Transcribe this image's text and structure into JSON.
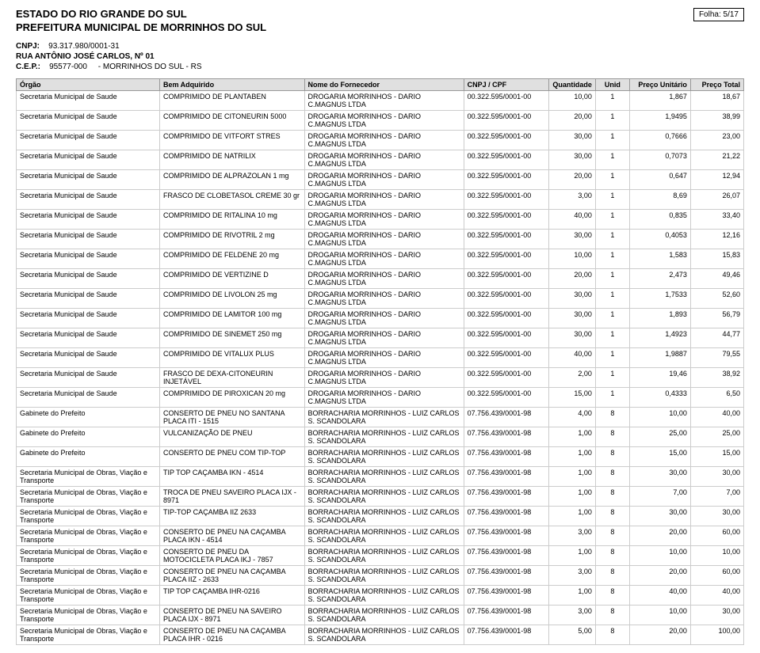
{
  "header": {
    "line1": "ESTADO DO RIO GRANDE DO SUL",
    "line2": "PREFEITURA MUNICIPAL DE MORRINHOS DO SUL",
    "folha_label": "Folha:",
    "folha_value": "5/17",
    "cnpj_label": "CNPJ:",
    "cnpj_value": "93.317.980/0001-31",
    "endereco": "RUA ANTÔNIO JOSÉ CARLOS, Nº 01",
    "cep_label": "C.E.P.:",
    "cep_value": "95577-000",
    "cidade": "- MORRINHOS DO SUL - RS"
  },
  "columns": {
    "orgao": "Órgão",
    "bem": "Bem Adquirido",
    "fornecedor": "Nome do Fornecedor",
    "cnpj": "CNPJ / CPF",
    "qtd": "Quantidade",
    "unid": "Unid",
    "pu": "Preço Unitário",
    "pt": "Preço Total"
  },
  "rows": [
    {
      "orgao": "Secretaria Municipal de Saude",
      "bem": "COMPRIMIDO DE PLANTABEN",
      "forn": "DROGARIA MORRINHOS - DARIO C.MAGNUS LTDA",
      "cnpj": "00.322.595/0001-00",
      "qtd": "10,00",
      "unid": "1",
      "pu": "1,867",
      "pt": "18,67"
    },
    {
      "orgao": "Secretaria Municipal de Saude",
      "bem": "COMPRIMIDO DE CITONEURIN 5000",
      "forn": "DROGARIA MORRINHOS - DARIO C.MAGNUS LTDA",
      "cnpj": "00.322.595/0001-00",
      "qtd": "20,00",
      "unid": "1",
      "pu": "1,9495",
      "pt": "38,99"
    },
    {
      "orgao": "Secretaria Municipal de Saude",
      "bem": "COMPRIMIDO DE VITFORT STRES",
      "forn": "DROGARIA MORRINHOS - DARIO C.MAGNUS LTDA",
      "cnpj": "00.322.595/0001-00",
      "qtd": "30,00",
      "unid": "1",
      "pu": "0,7666",
      "pt": "23,00"
    },
    {
      "orgao": "Secretaria Municipal de Saude",
      "bem": "COMPRIMIDO DE NATRILIX",
      "forn": "DROGARIA MORRINHOS - DARIO C.MAGNUS LTDA",
      "cnpj": "00.322.595/0001-00",
      "qtd": "30,00",
      "unid": "1",
      "pu": "0,7073",
      "pt": "21,22"
    },
    {
      "orgao": "Secretaria Municipal de Saude",
      "bem": "COMPRIMIDO DE ALPRAZOLAN 1 mg",
      "forn": "DROGARIA MORRINHOS - DARIO C.MAGNUS LTDA",
      "cnpj": "00.322.595/0001-00",
      "qtd": "20,00",
      "unid": "1",
      "pu": "0,647",
      "pt": "12,94"
    },
    {
      "orgao": "Secretaria Municipal de Saude",
      "bem": "FRASCO DE CLOBETASOL CREME 30 gr",
      "forn": "DROGARIA MORRINHOS - DARIO C.MAGNUS LTDA",
      "cnpj": "00.322.595/0001-00",
      "qtd": "3,00",
      "unid": "1",
      "pu": "8,69",
      "pt": "26,07"
    },
    {
      "orgao": "Secretaria Municipal de Saude",
      "bem": "COMPRIMIDO DE RITALINA 10 mg",
      "forn": "DROGARIA MORRINHOS - DARIO C.MAGNUS LTDA",
      "cnpj": "00.322.595/0001-00",
      "qtd": "40,00",
      "unid": "1",
      "pu": "0,835",
      "pt": "33,40"
    },
    {
      "orgao": "Secretaria Municipal de Saude",
      "bem": "COMPRIMIDO DE RIVOTRIL 2 mg",
      "forn": "DROGARIA MORRINHOS - DARIO C.MAGNUS LTDA",
      "cnpj": "00.322.595/0001-00",
      "qtd": "30,00",
      "unid": "1",
      "pu": "0,4053",
      "pt": "12,16"
    },
    {
      "orgao": "Secretaria Municipal de Saude",
      "bem": "COMPRIMIDO DE FELDENE 20 mg",
      "forn": "DROGARIA MORRINHOS - DARIO C.MAGNUS LTDA",
      "cnpj": "00.322.595/0001-00",
      "qtd": "10,00",
      "unid": "1",
      "pu": "1,583",
      "pt": "15,83"
    },
    {
      "orgao": "Secretaria Municipal de Saude",
      "bem": "COMPRIMIDO DE VERTIZINE D",
      "forn": "DROGARIA MORRINHOS - DARIO C.MAGNUS LTDA",
      "cnpj": "00.322.595/0001-00",
      "qtd": "20,00",
      "unid": "1",
      "pu": "2,473",
      "pt": "49,46"
    },
    {
      "orgao": "Secretaria Municipal de Saude",
      "bem": "COMPRIMIDO DE LIVOLON 25 mg",
      "forn": "DROGARIA MORRINHOS - DARIO C.MAGNUS LTDA",
      "cnpj": "00.322.595/0001-00",
      "qtd": "30,00",
      "unid": "1",
      "pu": "1,7533",
      "pt": "52,60"
    },
    {
      "orgao": "Secretaria Municipal de Saude",
      "bem": "COMPRIMIDO DE LAMITOR 100 mg",
      "forn": "DROGARIA MORRINHOS - DARIO C.MAGNUS LTDA",
      "cnpj": "00.322.595/0001-00",
      "qtd": "30,00",
      "unid": "1",
      "pu": "1,893",
      "pt": "56,79"
    },
    {
      "orgao": "Secretaria Municipal de Saude",
      "bem": "COMPRIMIDO DE SINEMET 250 mg",
      "forn": "DROGARIA MORRINHOS - DARIO C.MAGNUS LTDA",
      "cnpj": "00.322.595/0001-00",
      "qtd": "30,00",
      "unid": "1",
      "pu": "1,4923",
      "pt": "44,77"
    },
    {
      "orgao": "Secretaria Municipal de Saude",
      "bem": "COMPRIMIDO DE VITALUX PLUS",
      "forn": "DROGARIA MORRINHOS - DARIO C.MAGNUS LTDA",
      "cnpj": "00.322.595/0001-00",
      "qtd": "40,00",
      "unid": "1",
      "pu": "1,9887",
      "pt": "79,55"
    },
    {
      "orgao": "Secretaria Municipal de Saude",
      "bem": "FRASCO DE DEXA-CITONEURIN INJETÁVEL",
      "forn": "DROGARIA MORRINHOS - DARIO C.MAGNUS LTDA",
      "cnpj": "00.322.595/0001-00",
      "qtd": "2,00",
      "unid": "1",
      "pu": "19,46",
      "pt": "38,92"
    },
    {
      "orgao": "Secretaria Municipal de Saude",
      "bem": "COMPRIMIDO DE PIROXICAN 20 mg",
      "forn": "DROGARIA MORRINHOS - DARIO C.MAGNUS LTDA",
      "cnpj": "00.322.595/0001-00",
      "qtd": "15,00",
      "unid": "1",
      "pu": "0,4333",
      "pt": "6,50"
    },
    {
      "orgao": "Gabinete do Prefeito",
      "bem": "CONSERTO DE PNEU NO SANTANA PLACA ITI - 1515",
      "forn": "BORRACHARIA MORRINHOS - LUIZ CARLOS S. SCANDOLARA",
      "cnpj": "07.756.439/0001-98",
      "qtd": "4,00",
      "unid": "8",
      "pu": "10,00",
      "pt": "40,00"
    },
    {
      "orgao": "Gabinete do Prefeito",
      "bem": "VULCANIZAÇÃO DE PNEU",
      "forn": "BORRACHARIA MORRINHOS - LUIZ CARLOS S. SCANDOLARA",
      "cnpj": "07.756.439/0001-98",
      "qtd": "1,00",
      "unid": "8",
      "pu": "25,00",
      "pt": "25,00"
    },
    {
      "orgao": "Gabinete do Prefeito",
      "bem": "CONSERTO DE PNEU COM TIP-TOP",
      "forn": "BORRACHARIA MORRINHOS - LUIZ CARLOS S. SCANDOLARA",
      "cnpj": "07.756.439/0001-98",
      "qtd": "1,00",
      "unid": "8",
      "pu": "15,00",
      "pt": "15,00"
    },
    {
      "orgao": "Secretaria Municipal de Obras, Viação e Transporte",
      "bem": "TIP TOP CAÇAMBA IKN - 4514",
      "forn": "BORRACHARIA MORRINHOS - LUIZ CARLOS S. SCANDOLARA",
      "cnpj": "07.756.439/0001-98",
      "qtd": "1,00",
      "unid": "8",
      "pu": "30,00",
      "pt": "30,00"
    },
    {
      "orgao": "Secretaria Municipal de Obras, Viação e Transporte",
      "bem": "TROCA DE PNEU SAVEIRO PLACA IJX - 8971",
      "forn": "BORRACHARIA MORRINHOS - LUIZ CARLOS S. SCANDOLARA",
      "cnpj": "07.756.439/0001-98",
      "qtd": "1,00",
      "unid": "8",
      "pu": "7,00",
      "pt": "7,00"
    },
    {
      "orgao": "Secretaria Municipal de Obras, Viação e Transporte",
      "bem": "TIP-TOP CAÇAMBA IIZ 2633",
      "forn": "BORRACHARIA MORRINHOS - LUIZ CARLOS S. SCANDOLARA",
      "cnpj": "07.756.439/0001-98",
      "qtd": "1,00",
      "unid": "8",
      "pu": "30,00",
      "pt": "30,00"
    },
    {
      "orgao": "Secretaria Municipal de Obras, Viação e Transporte",
      "bem": "CONSERTO DE PNEU NA CAÇAMBA PLACA IKN - 4514",
      "forn": "BORRACHARIA MORRINHOS - LUIZ CARLOS S. SCANDOLARA",
      "cnpj": "07.756.439/0001-98",
      "qtd": "3,00",
      "unid": "8",
      "pu": "20,00",
      "pt": "60,00"
    },
    {
      "orgao": "Secretaria Municipal de Obras, Viação e Transporte",
      "bem": "CONSERTO DE PNEU DA MOTOCICLETA PLACA IKJ - 7857",
      "forn": "BORRACHARIA MORRINHOS - LUIZ CARLOS S. SCANDOLARA",
      "cnpj": "07.756.439/0001-98",
      "qtd": "1,00",
      "unid": "8",
      "pu": "10,00",
      "pt": "10,00"
    },
    {
      "orgao": "Secretaria Municipal de Obras, Viação e Transporte",
      "bem": "CONSERTO DE PNEU NA CAÇAMBA PLACA IIZ - 2633",
      "forn": "BORRACHARIA MORRINHOS - LUIZ CARLOS S. SCANDOLARA",
      "cnpj": "07.756.439/0001-98",
      "qtd": "3,00",
      "unid": "8",
      "pu": "20,00",
      "pt": "60,00"
    },
    {
      "orgao": "Secretaria Municipal de Obras, Viação e Transporte",
      "bem": "TIP TOP CAÇAMBA IHR-0216",
      "forn": "BORRACHARIA MORRINHOS - LUIZ CARLOS S. SCANDOLARA",
      "cnpj": "07.756.439/0001-98",
      "qtd": "1,00",
      "unid": "8",
      "pu": "40,00",
      "pt": "40,00"
    },
    {
      "orgao": "Secretaria Municipal de Obras, Viação e Transporte",
      "bem": "CONSERTO DE PNEU NA SAVEIRO PLACA IJX - 8971",
      "forn": "BORRACHARIA MORRINHOS - LUIZ CARLOS S. SCANDOLARA",
      "cnpj": "07.756.439/0001-98",
      "qtd": "3,00",
      "unid": "8",
      "pu": "10,00",
      "pt": "30,00"
    },
    {
      "orgao": "Secretaria Municipal de Obras, Viação e Transporte",
      "bem": "CONSERTO DE PNEU NA CAÇAMBA PLACA IHR - 0216",
      "forn": "BORRACHARIA MORRINHOS - LUIZ CARLOS S. SCANDOLARA",
      "cnpj": "07.756.439/0001-98",
      "qtd": "5,00",
      "unid": "8",
      "pu": "20,00",
      "pt": "100,00"
    }
  ]
}
